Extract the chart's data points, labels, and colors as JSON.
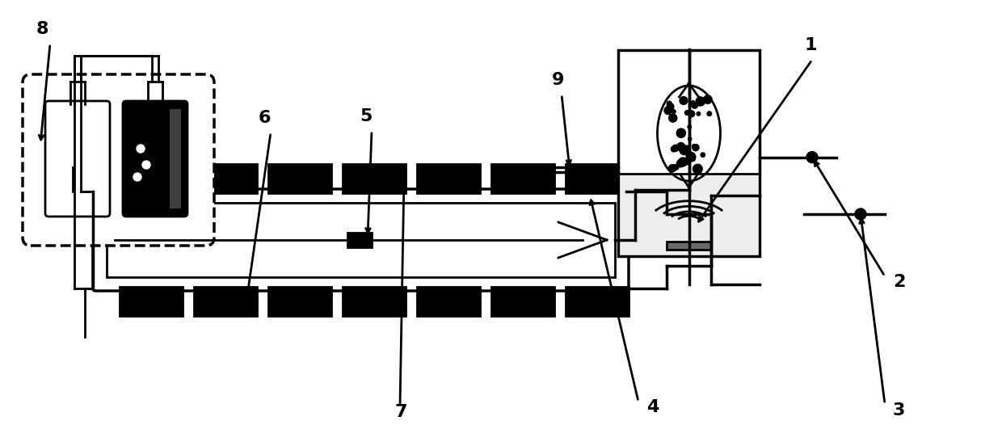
{
  "bg_color": "#ffffff",
  "line_color": "#000000",
  "label_fontsize": 16,
  "label_fontweight": "bold",
  "figsize": [
    12.4,
    5.52
  ],
  "dpi": 100
}
